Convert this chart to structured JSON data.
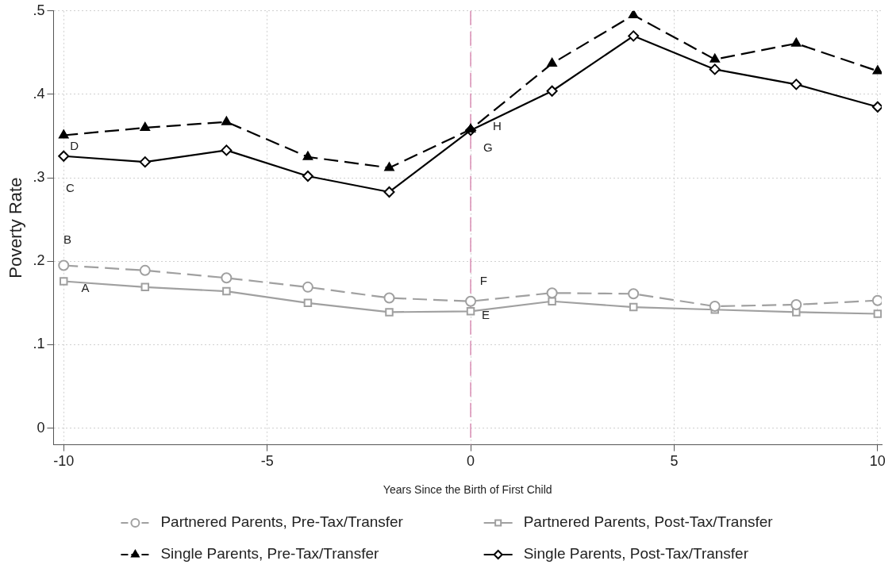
{
  "chart_data": {
    "type": "line",
    "xlabel": "Years Since the Birth of First Child",
    "ylabel": "Poverty Rate",
    "x": [
      -10,
      -8,
      -6,
      -4,
      -2,
      0,
      2,
      4,
      6,
      8,
      10
    ],
    "series": [
      {
        "name": "Partnered Parents, Pre-Tax/Transfer",
        "color": "#a0a0a0",
        "marker": "circle",
        "line_style": "dashed",
        "values": [
          0.195,
          0.189,
          0.18,
          0.169,
          0.156,
          0.152,
          0.162,
          0.161,
          0.146,
          0.148,
          0.153
        ]
      },
      {
        "name": "Partnered Parents, Post-Tax/Transfer",
        "color": "#a0a0a0",
        "marker": "square",
        "line_style": "solid",
        "values": [
          0.176,
          0.169,
          0.164,
          0.15,
          0.139,
          0.14,
          0.152,
          0.145,
          0.142,
          0.139,
          0.137
        ]
      },
      {
        "name": "Single Parents, Pre-Tax/Transfer",
        "color": "#000000",
        "marker": "triangle",
        "line_style": "dashed",
        "values": [
          0.351,
          0.36,
          0.367,
          0.325,
          0.312,
          0.358,
          0.437,
          0.495,
          0.442,
          0.461,
          0.428
        ]
      },
      {
        "name": "Single Parents, Post-Tax/Transfer",
        "color": "#000000",
        "marker": "diamond",
        "line_style": "solid",
        "values": [
          0.326,
          0.319,
          0.333,
          0.302,
          0.283,
          0.357,
          0.404,
          0.47,
          0.43,
          0.412,
          0.385
        ]
      }
    ],
    "xlim": [
      -10.25,
      10.1
    ],
    "xticks": [
      -10,
      -5,
      0,
      5,
      10
    ],
    "ylim": [
      -0.02,
      0.5
    ],
    "yticks": [
      0,
      {
        "value": 0.1,
        "label": ".1"
      },
      {
        "value": 0.2,
        "label": ".2"
      },
      {
        "value": 0.3,
        "label": ".3"
      },
      {
        "value": 0.4,
        "label": ".4"
      },
      {
        "value": 0.5,
        "label": ".5"
      }
    ],
    "grid": true,
    "legend": "bottom",
    "ref_lines": [
      {
        "axis": "x",
        "value": 0,
        "color": "#d98cb3",
        "line_style": "dashed"
      }
    ],
    "annotations": [
      {
        "text": "A",
        "x": -9.72,
        "y": 0.176
      },
      "B",
      "C",
      "D",
      "E",
      "F",
      "G",
      {
        "text": "H",
        "x": 0.39,
        "y": 0.37
      }
    ]
  }
}
